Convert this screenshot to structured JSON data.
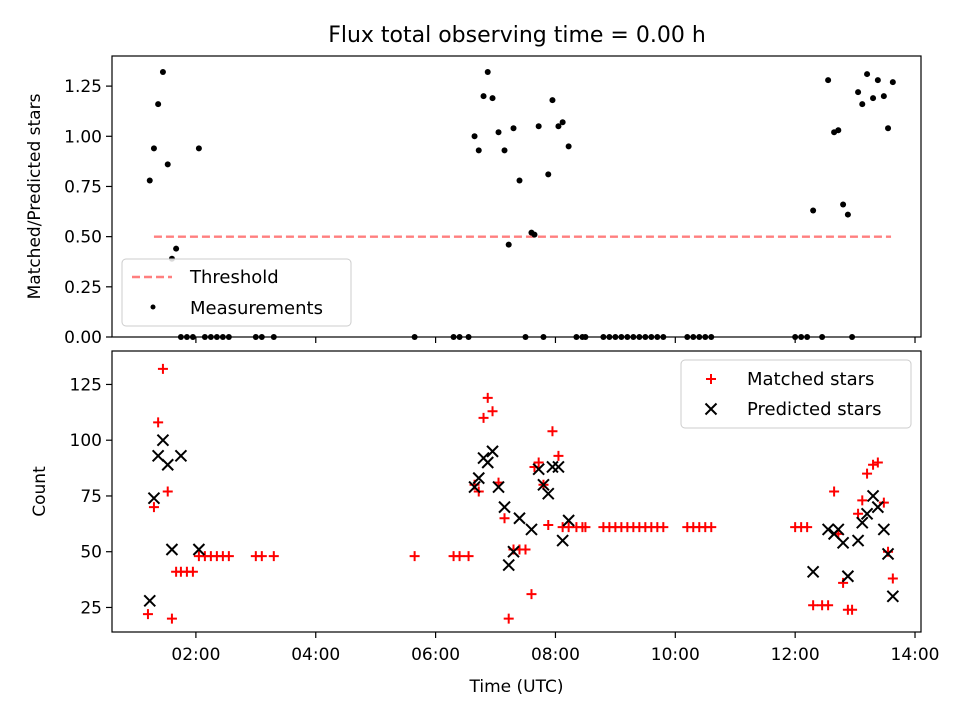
{
  "chart_data": [
    {
      "type": "scatter",
      "title": "Flux total observing time = 0.00 h",
      "xlabel": "",
      "ylabel": "Matched/Predicted stars",
      "xlim_hours": [
        0.6,
        14.1
      ],
      "ylim": [
        0,
        1.4
      ],
      "yticks": [
        "0.00",
        "0.25",
        "0.50",
        "0.75",
        "1.00",
        "1.25"
      ],
      "grid": false,
      "legend_position": "lower-left",
      "threshold": {
        "name": "Threshold",
        "value": 0.5,
        "x_start": 1.3,
        "x_end": 13.6,
        "color": "#ff7f7f"
      },
      "measurements": {
        "name": "Measurements",
        "color": "#000000",
        "x": [
          1.23,
          1.3,
          1.37,
          1.45,
          1.53,
          1.6,
          1.67,
          1.75,
          1.85,
          1.95,
          2.05,
          2.15,
          2.25,
          2.35,
          2.45,
          2.55,
          3.0,
          3.1,
          3.3,
          5.65,
          6.3,
          6.4,
          6.55,
          6.65,
          6.72,
          6.8,
          6.87,
          6.95,
          7.05,
          7.15,
          7.22,
          7.3,
          7.4,
          7.5,
          7.6,
          7.65,
          7.72,
          7.8,
          7.88,
          7.95,
          8.05,
          8.12,
          8.22,
          8.35,
          8.45,
          8.5,
          8.8,
          8.9,
          9.0,
          9.1,
          9.2,
          9.3,
          9.4,
          9.5,
          9.6,
          9.7,
          9.8,
          10.2,
          10.3,
          10.4,
          10.5,
          10.6,
          12.0,
          12.1,
          12.2,
          12.3,
          12.45,
          12.55,
          12.65,
          12.72,
          12.8,
          12.88,
          12.95,
          13.05,
          13.12,
          13.2,
          13.3,
          13.38,
          13.48,
          13.55,
          13.63
        ],
        "y": [
          0.78,
          0.94,
          1.16,
          1.32,
          0.86,
          0.39,
          0.44,
          0.0,
          0.0,
          0.0,
          0.94,
          0.0,
          0.0,
          0.0,
          0.0,
          0.0,
          0.0,
          0.0,
          0.0,
          0.0,
          0.0,
          0.0,
          0.0,
          1.0,
          0.93,
          1.2,
          1.32,
          1.19,
          1.02,
          0.93,
          0.46,
          1.04,
          0.78,
          0.0,
          0.52,
          0.51,
          1.05,
          0.0,
          0.81,
          1.18,
          1.05,
          1.07,
          0.95,
          0.0,
          0.0,
          0.0,
          0.0,
          0.0,
          0.0,
          0.0,
          0.0,
          0.0,
          0.0,
          0.0,
          0.0,
          0.0,
          0.0,
          0.0,
          0.0,
          0.0,
          0.0,
          0.0,
          0.0,
          0.0,
          0.0,
          0.63,
          0.0,
          1.28,
          1.02,
          1.03,
          0.66,
          0.61,
          0.0,
          1.22,
          1.16,
          1.31,
          1.19,
          1.28,
          1.2,
          1.04,
          1.27
        ]
      }
    },
    {
      "type": "scatter",
      "title": "",
      "xlabel": "Time (UTC)",
      "ylabel": "Count",
      "xlim_hours": [
        0.6,
        14.1
      ],
      "ylim": [
        14,
        140
      ],
      "yticks": [
        "25",
        "50",
        "75",
        "100",
        "125"
      ],
      "xticks": [
        "02:00",
        "04:00",
        "06:00",
        "08:00",
        "10:00",
        "12:00",
        "14:00"
      ],
      "grid": false,
      "legend_position": "upper-right",
      "series": [
        {
          "name": "Matched stars",
          "marker": "plus",
          "color": "#ff0000",
          "x": [
            1.2,
            1.3,
            1.37,
            1.45,
            1.53,
            1.6,
            1.67,
            1.75,
            1.85,
            1.95,
            2.05,
            2.15,
            2.25,
            2.35,
            2.45,
            2.55,
            3.0,
            3.1,
            3.3,
            5.65,
            6.3,
            6.4,
            6.55,
            6.65,
            6.72,
            6.8,
            6.87,
            6.95,
            7.05,
            7.15,
            7.22,
            7.3,
            7.4,
            7.5,
            7.6,
            7.65,
            7.72,
            7.8,
            7.88,
            7.95,
            8.05,
            8.12,
            8.22,
            8.35,
            8.45,
            8.5,
            8.8,
            8.9,
            9.0,
            9.1,
            9.2,
            9.3,
            9.4,
            9.5,
            9.6,
            9.7,
            9.8,
            10.2,
            10.3,
            10.4,
            10.5,
            10.6,
            12.0,
            12.1,
            12.2,
            12.3,
            12.45,
            12.55,
            12.65,
            12.72,
            12.8,
            12.88,
            12.95,
            13.05,
            13.12,
            13.2,
            13.3,
            13.38,
            13.48,
            13.55,
            13.63
          ],
          "y": [
            22,
            70,
            108,
            132,
            77,
            20,
            41,
            41,
            41,
            41,
            48,
            48,
            48,
            48,
            48,
            48,
            48,
            48,
            48,
            48,
            48,
            48,
            48,
            80,
            77,
            110,
            119,
            113,
            81,
            65,
            20,
            51,
            51,
            51,
            31,
            88,
            90,
            80,
            62,
            104,
            93,
            61,
            61,
            61,
            61,
            61,
            61,
            61,
            61,
            61,
            61,
            61,
            61,
            61,
            61,
            61,
            61,
            61,
            61,
            61,
            61,
            61,
            61,
            61,
            61,
            26,
            26,
            26,
            77,
            58,
            36,
            24,
            24,
            67,
            73,
            85,
            89,
            90,
            72,
            50,
            38
          ]
        },
        {
          "name": "Predicted stars",
          "marker": "x",
          "color": "#000000",
          "x": [
            1.23,
            1.3,
            1.37,
            1.45,
            1.53,
            1.6,
            1.75,
            2.05,
            6.65,
            6.72,
            6.8,
            6.87,
            6.95,
            7.05,
            7.15,
            7.22,
            7.3,
            7.4,
            7.6,
            7.72,
            7.8,
            7.88,
            7.95,
            8.05,
            8.12,
            8.22,
            12.3,
            12.55,
            12.65,
            12.72,
            12.8,
            12.88,
            13.05,
            13.12,
            13.2,
            13.3,
            13.38,
            13.48,
            13.55,
            13.63
          ],
          "y": [
            28,
            74,
            93,
            100,
            89,
            51,
            93,
            51,
            79,
            83,
            92,
            90,
            95,
            79,
            70,
            44,
            50,
            65,
            60,
            87,
            80,
            76,
            88,
            88,
            55,
            64,
            41,
            60,
            58,
            60,
            54,
            39,
            55,
            63,
            67,
            75,
            70,
            60,
            49,
            30
          ]
        }
      ]
    }
  ]
}
